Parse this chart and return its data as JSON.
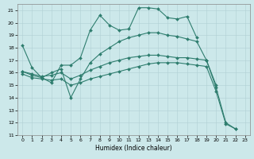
{
  "title": "",
  "xlabel": "Humidex (Indice chaleur)",
  "xlim": [
    -0.5,
    23.5
  ],
  "ylim": [
    11,
    21.5
  ],
  "yticks": [
    11,
    12,
    13,
    14,
    15,
    16,
    17,
    18,
    19,
    20,
    21
  ],
  "xticks": [
    0,
    1,
    2,
    3,
    4,
    5,
    6,
    7,
    8,
    9,
    10,
    11,
    12,
    13,
    14,
    15,
    16,
    17,
    18,
    19,
    20,
    21,
    22,
    23
  ],
  "bg_color": "#cce8ea",
  "line_color": "#2e7d6e",
  "grid_color": "#b0d0d3",
  "lines": [
    {
      "x": [
        0,
        1,
        2,
        3,
        4,
        5,
        6,
        7,
        8,
        9,
        10,
        11,
        12,
        13,
        14,
        15,
        16,
        17,
        18
      ],
      "y": [
        18.2,
        16.4,
        15.6,
        15.2,
        16.6,
        16.6,
        17.2,
        19.4,
        20.6,
        19.8,
        19.4,
        19.5,
        21.2,
        21.2,
        21.1,
        20.4,
        20.3,
        20.5,
        18.8
      ]
    },
    {
      "x": [
        0,
        1,
        2,
        3,
        4,
        5,
        6,
        7,
        8,
        9,
        10,
        11,
        12,
        13,
        14,
        15,
        16,
        17,
        18,
        19,
        20
      ],
      "y": [
        16.1,
        15.8,
        15.6,
        16.0,
        16.3,
        14.0,
        15.5,
        16.8,
        17.5,
        18.0,
        18.5,
        18.8,
        19.0,
        19.2,
        19.2,
        19.0,
        18.9,
        18.7,
        18.5,
        17.0,
        15.0
      ]
    },
    {
      "x": [
        0,
        1,
        2,
        3,
        4,
        5,
        6,
        7,
        8,
        9,
        10,
        11,
        12,
        13,
        14,
        15,
        16,
        17,
        18,
        19,
        20,
        21,
        22
      ],
      "y": [
        16.1,
        15.9,
        15.7,
        15.8,
        16.0,
        15.5,
        15.8,
        16.2,
        16.5,
        16.8,
        17.0,
        17.2,
        17.3,
        17.4,
        17.4,
        17.3,
        17.2,
        17.2,
        17.1,
        17.0,
        14.8,
        12.0,
        11.5
      ]
    },
    {
      "x": [
        0,
        1,
        2,
        3,
        4,
        5,
        6,
        7,
        8,
        9,
        10,
        11,
        12,
        13,
        14,
        15,
        16,
        17,
        18,
        19,
        20,
        21,
        22
      ],
      "y": [
        15.9,
        15.6,
        15.5,
        15.4,
        15.5,
        15.0,
        15.2,
        15.5,
        15.7,
        15.9,
        16.1,
        16.3,
        16.5,
        16.7,
        16.8,
        16.8,
        16.8,
        16.7,
        16.6,
        16.5,
        14.5,
        11.9,
        11.5
      ]
    }
  ]
}
